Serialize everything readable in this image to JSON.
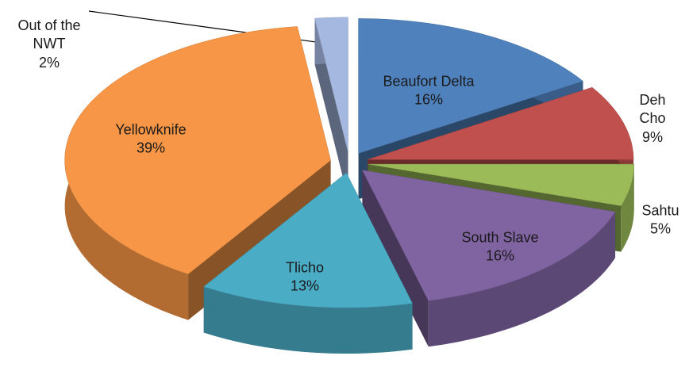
{
  "chart_data": {
    "type": "pie",
    "categories": [
      "Beaufort Delta",
      "Deh Cho",
      "Sahtu",
      "South Slave",
      "Tlicho",
      "Yellowknife",
      "Out of the NWT"
    ],
    "values": [
      16,
      9,
      5,
      16,
      13,
      39,
      2
    ],
    "value_labels": [
      "16%",
      "9%",
      "5%",
      "16%",
      "13%",
      "39%",
      "2%"
    ],
    "colors": [
      "#4f81bd",
      "#c0504d",
      "#9bbb59",
      "#8064a2",
      "#4bacc6",
      "#f79646",
      "#a5b8e0"
    ]
  }
}
